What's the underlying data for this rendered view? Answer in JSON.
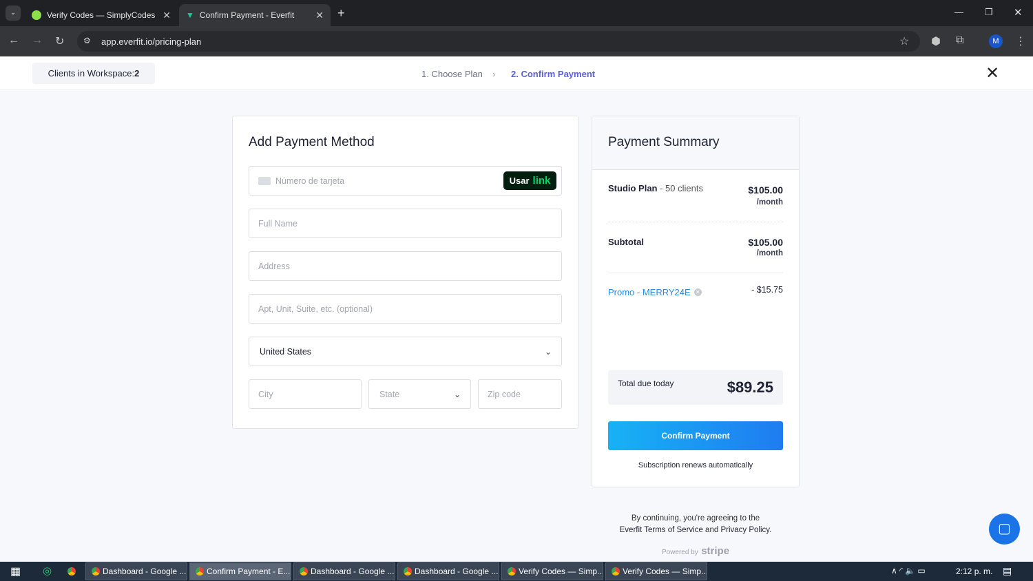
{
  "browser": {
    "tabs": [
      {
        "title": "Verify Codes — SimplyCodes",
        "active": false
      },
      {
        "title": "Confirm Payment - Everfit",
        "active": true
      }
    ],
    "url": "app.everfit.io/pricing-plan",
    "profile": "M"
  },
  "header": {
    "clients_label": "Clients in Workspace: ",
    "clients_count": "2",
    "steps": [
      "1. Choose Plan",
      "2. Confirm Payment"
    ]
  },
  "payment": {
    "title": "Add Payment Method",
    "card_placeholder": "Número de tarjeta",
    "link_button": {
      "usar": "Usar",
      "link": "link"
    },
    "full_name": "Full Name",
    "address": "Address",
    "apt": "Apt, Unit, Suite, etc. (optional)",
    "country": "United States",
    "city": "City",
    "state": "State",
    "zip": "Zip code"
  },
  "summary": {
    "title": "Payment Summary",
    "plan_name": "Studio Plan",
    "plan_detail": " - 50 clients",
    "plan_price": "$105.00",
    "per": "/month",
    "subtotal_label": "Subtotal",
    "subtotal": "$105.00",
    "promo": "Promo - MERRY24E",
    "promo_amount": "- $15.75",
    "total_label": "Total due today",
    "total": "$89.25",
    "confirm": "Confirm Payment",
    "renews": "Subscription renews automatically"
  },
  "footer": {
    "line1": "By continuing, you're agreeing to the",
    "terms": "Everfit Terms of Service",
    "and": " and ",
    "privacy": "Privacy Policy",
    "period": ".",
    "powered": "Powered by",
    "stripe": "stripe"
  },
  "taskbar": {
    "items": [
      "Dashboard - Google ...",
      "Confirm Payment - E...",
      "Dashboard - Google ...",
      "Dashboard - Google ...",
      "Verify Codes — Simp...",
      "Verify Codes — Simp..."
    ],
    "time": "2:12 p. m."
  },
  "colors": {
    "accent": "#1f8cf0",
    "link_green": "#00d66f",
    "dark": "#1e2235"
  }
}
